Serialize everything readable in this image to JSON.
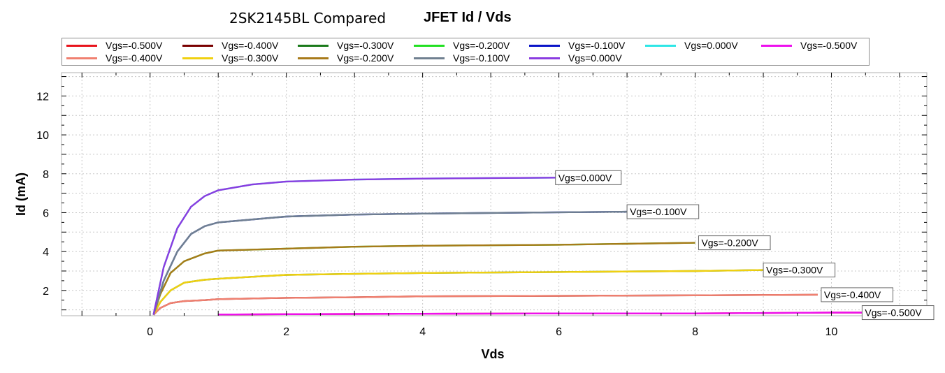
{
  "chart_data": {
    "type": "line",
    "title": "JFET Id / Vds",
    "subtitle": "2SK2145BL Compared",
    "xlabel": "Vds",
    "ylabel": "Id (mA)",
    "xlim": [
      -1.3,
      11.4
    ],
    "ylim": [
      0.7,
      13.2
    ],
    "xticks": [
      0,
      2,
      4,
      6,
      8,
      10
    ],
    "yticks": [
      2,
      4,
      6,
      8,
      10,
      12
    ],
    "grid": true,
    "legend_position": "top",
    "series": [
      {
        "name": "Vgs=-0.500V",
        "color": "#e8141c",
        "x": [
          1.0,
          2.0,
          4.0,
          6.0,
          8.0,
          10.0,
          10.5
        ],
        "y": [
          0.76,
          0.78,
          0.8,
          0.82,
          0.82,
          0.86,
          0.86
        ]
      },
      {
        "name": "Vgs=-0.400V",
        "color": "#7a0000",
        "x": [
          0.05,
          0.15,
          0.3,
          0.5,
          0.8,
          1.0,
          2.0,
          3.0,
          4.0,
          6.0,
          8.0,
          9.8
        ],
        "y": [
          0.75,
          1.1,
          1.35,
          1.45,
          1.5,
          1.55,
          1.62,
          1.65,
          1.7,
          1.72,
          1.75,
          1.78
        ]
      },
      {
        "name": "Vgs=-0.300V",
        "color": "#1a7a1a",
        "x": [
          0.05,
          0.15,
          0.3,
          0.5,
          0.8,
          1.0,
          2.0,
          3.0,
          4.0,
          6.0,
          8.0,
          9.0
        ],
        "y": [
          0.75,
          1.4,
          2.0,
          2.4,
          2.55,
          2.6,
          2.8,
          2.85,
          2.9,
          2.95,
          3.0,
          3.05
        ]
      },
      {
        "name": "Vgs=-0.200V",
        "color": "#22e022",
        "x": [
          0.05,
          0.15,
          0.3,
          0.5,
          0.8,
          1.0,
          2.0,
          3.0,
          4.0,
          6.0,
          8.0
        ],
        "y": [
          0.75,
          1.8,
          2.9,
          3.5,
          3.9,
          4.05,
          4.15,
          4.25,
          4.3,
          4.35,
          4.45
        ]
      },
      {
        "name": "Vgs=-0.100V",
        "color": "#0a14c8",
        "x": [
          0.05,
          0.2,
          0.4,
          0.6,
          0.8,
          1.0,
          2.0,
          3.0,
          4.0,
          6.0,
          7.0
        ],
        "y": [
          0.75,
          2.5,
          4.0,
          4.9,
          5.3,
          5.5,
          5.8,
          5.9,
          5.95,
          6.02,
          6.05
        ]
      },
      {
        "name": "Vgs=0.000V",
        "color": "#2ee6e6",
        "x": [
          0.05,
          0.2,
          0.4,
          0.6,
          0.8,
          1.0,
          1.5,
          2.0,
          3.0,
          4.0,
          5.0,
          6.0
        ],
        "y": [
          0.75,
          3.2,
          5.2,
          6.3,
          6.85,
          7.15,
          7.45,
          7.6,
          7.7,
          7.75,
          7.78,
          7.8
        ]
      },
      {
        "name": "Vgs=-0.500V",
        "color": "#ee10ee",
        "x": [
          1.0,
          2.0,
          4.0,
          6.0,
          8.0,
          10.0,
          10.5
        ],
        "y": [
          0.76,
          0.78,
          0.8,
          0.82,
          0.82,
          0.86,
          0.86
        ]
      },
      {
        "name": "Vgs=-0.400V",
        "color": "#f08070",
        "x": [
          0.05,
          0.15,
          0.3,
          0.5,
          0.8,
          1.0,
          2.0,
          3.0,
          4.0,
          6.0,
          8.0,
          9.8
        ],
        "y": [
          0.75,
          1.1,
          1.35,
          1.45,
          1.5,
          1.55,
          1.62,
          1.65,
          1.7,
          1.72,
          1.75,
          1.78
        ]
      },
      {
        "name": "Vgs=-0.300V",
        "color": "#f0d010",
        "x": [
          0.05,
          0.15,
          0.3,
          0.5,
          0.8,
          1.0,
          2.0,
          3.0,
          4.0,
          6.0,
          8.0,
          9.0
        ],
        "y": [
          0.75,
          1.4,
          2.0,
          2.4,
          2.55,
          2.6,
          2.8,
          2.85,
          2.9,
          2.95,
          3.0,
          3.05
        ]
      },
      {
        "name": "Vgs=-0.200V",
        "color": "#a87a1a",
        "x": [
          0.05,
          0.15,
          0.3,
          0.5,
          0.8,
          1.0,
          2.0,
          3.0,
          4.0,
          6.0,
          8.0
        ],
        "y": [
          0.75,
          1.8,
          2.9,
          3.5,
          3.9,
          4.05,
          4.15,
          4.25,
          4.3,
          4.35,
          4.45
        ]
      },
      {
        "name": "Vgs=-0.100V",
        "color": "#708090",
        "x": [
          0.05,
          0.2,
          0.4,
          0.6,
          0.8,
          1.0,
          2.0,
          3.0,
          4.0,
          6.0,
          7.0
        ],
        "y": [
          0.75,
          2.5,
          4.0,
          4.9,
          5.3,
          5.5,
          5.8,
          5.9,
          5.95,
          6.02,
          6.05
        ]
      },
      {
        "name": "Vgs=0.000V",
        "color": "#8a3ce0",
        "x": [
          0.05,
          0.2,
          0.4,
          0.6,
          0.8,
          1.0,
          1.5,
          2.0,
          3.0,
          4.0,
          5.0,
          6.0
        ],
        "y": [
          0.75,
          3.2,
          5.2,
          6.3,
          6.85,
          7.15,
          7.45,
          7.6,
          7.7,
          7.75,
          7.78,
          7.8
        ]
      }
    ],
    "annotations": [
      {
        "text": "Vgs=0.000V",
        "x": 5.95,
        "y": 7.8
      },
      {
        "text": "Vgs=-0.100V",
        "x": 7.0,
        "y": 6.05
      },
      {
        "text": "Vgs=-0.200V",
        "x": 8.05,
        "y": 4.45
      },
      {
        "text": "Vgs=-0.300V",
        "x": 9.0,
        "y": 3.05
      },
      {
        "text": "Vgs=-0.400V",
        "x": 9.85,
        "y": 1.78
      },
      {
        "text": "Vgs=-0.500V",
        "x": 10.45,
        "y": 0.86
      }
    ]
  }
}
